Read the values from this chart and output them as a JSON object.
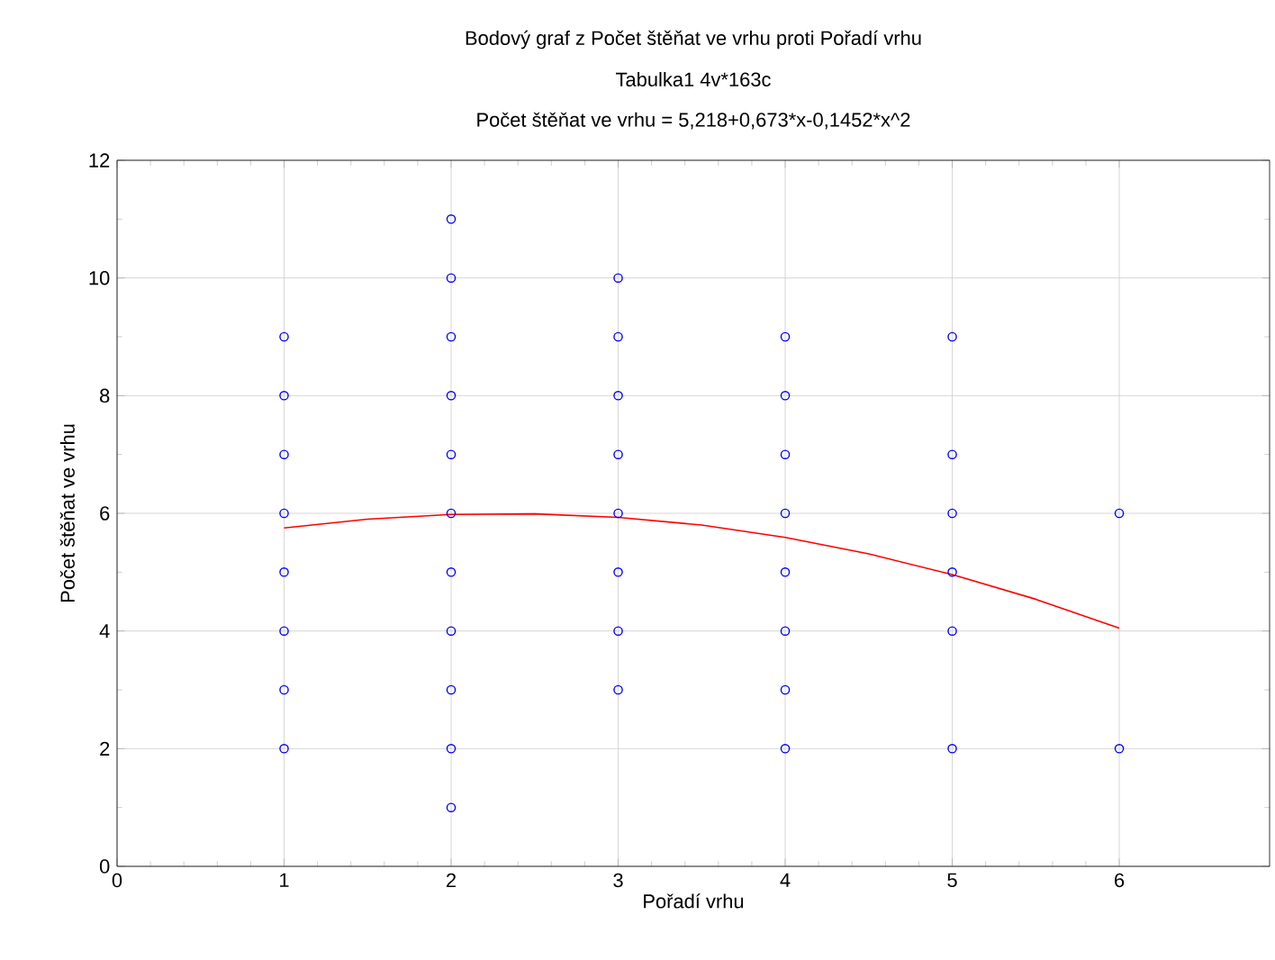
{
  "chart_data": {
    "type": "scatter",
    "title": "Bodový graf z Počet štěňat ve vrhu proti Pořadí vrhu",
    "subtitle": "Tabulka1 4v*163c",
    "annotations": [
      "Počet štěňat ve vrhu = 5,218+0,673*x-0,1452*x^2"
    ],
    "xlabel": "Pořadí vrhu",
    "ylabel": "Počet štěňat ve vrhu",
    "xlim": [
      0,
      6.9
    ],
    "ylim": [
      0,
      12
    ],
    "xticks": [
      0,
      1,
      2,
      3,
      4,
      5,
      6
    ],
    "yticks": [
      0,
      2,
      4,
      6,
      8,
      10,
      12
    ],
    "grid": true,
    "series": [
      {
        "marker": "circle",
        "color": "#0000ff",
        "x": [
          1,
          1,
          1,
          1,
          1,
          1,
          1,
          1,
          2,
          2,
          2,
          2,
          2,
          2,
          2,
          2,
          2,
          2,
          2,
          3,
          3,
          3,
          3,
          3,
          3,
          3,
          3,
          4,
          4,
          4,
          4,
          4,
          4,
          4,
          4,
          5,
          5,
          5,
          5,
          5,
          5,
          6,
          6
        ],
        "values": [
          2,
          3,
          4,
          5,
          6,
          7,
          8,
          9,
          1,
          2,
          3,
          4,
          5,
          6,
          7,
          8,
          9,
          10,
          11,
          3,
          4,
          5,
          6,
          7,
          8,
          9,
          10,
          2,
          3,
          4,
          5,
          6,
          7,
          8,
          9,
          2,
          4,
          5,
          6,
          7,
          9,
          2,
          6
        ]
      },
      {
        "type": "line",
        "marker": "none",
        "color": "#ff0000",
        "x": [
          1,
          1.5,
          2,
          2.5,
          3,
          3.5,
          4,
          4.5,
          5,
          5.5,
          6
        ],
        "values": [
          5.75,
          5.9,
          5.98,
          5.99,
          5.93,
          5.8,
          5.59,
          5.31,
          4.96,
          4.54,
          4.05
        ]
      }
    ]
  }
}
